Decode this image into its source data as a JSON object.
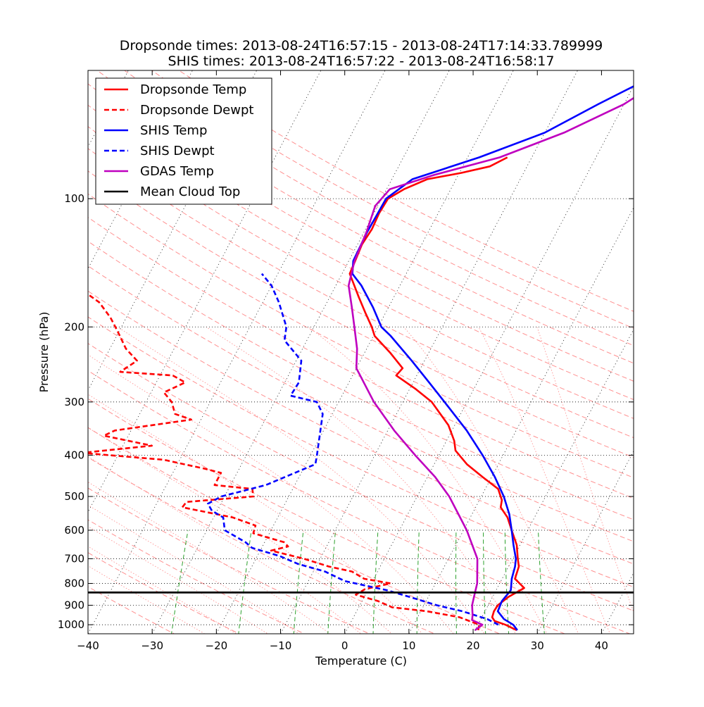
{
  "chart_data": {
    "type": "line",
    "subtype": "skew-T log-P diagram",
    "title_lines": [
      "Dropsonde times: 2013-08-24T16:57:15 - 2013-08-24T17:14:33.789999",
      "SHIS times: 2013-08-24T16:57:22 - 2013-08-24T16:58:17"
    ],
    "xlabel": "Temperature (C)",
    "ylabel": "Pressure (hPa)",
    "xlim": [
      -40,
      45
    ],
    "ylim": [
      1050,
      50
    ],
    "y_scale": "log",
    "skew": 35,
    "legend_position": "upper-left",
    "x_ticks": [
      {
        "value": -40,
        "label": "−40"
      },
      {
        "value": -30,
        "label": "−30"
      },
      {
        "value": -20,
        "label": "−20"
      },
      {
        "value": -10,
        "label": "−10"
      },
      {
        "value": 0,
        "label": "0"
      },
      {
        "value": 10,
        "label": "10"
      },
      {
        "value": 20,
        "label": "20"
      },
      {
        "value": 30,
        "label": "30"
      },
      {
        "value": 40,
        "label": "40"
      }
    ],
    "y_ticks": [
      {
        "value": 100,
        "label": "100"
      },
      {
        "value": 200,
        "label": "200"
      },
      {
        "value": 300,
        "label": "300"
      },
      {
        "value": 400,
        "label": "400"
      },
      {
        "value": 500,
        "label": "500"
      },
      {
        "value": 600,
        "label": "600"
      },
      {
        "value": 700,
        "label": "700"
      },
      {
        "value": 800,
        "label": "800"
      },
      {
        "value": 900,
        "label": "900"
      },
      {
        "value": 1000,
        "label": "1000"
      }
    ],
    "mean_cloud_top_hpa": 840,
    "series": [
      {
        "name": "Dropsonde Temp",
        "color": "#ff0000",
        "dash": "solid",
        "points": [
          [
            1030,
            26.5
          ],
          [
            1000,
            24.3
          ],
          [
            980,
            22.3
          ],
          [
            960,
            21.6
          ],
          [
            930,
            21.4
          ],
          [
            900,
            21.5
          ],
          [
            860,
            22.5
          ],
          [
            820,
            24.2
          ],
          [
            780,
            22.0
          ],
          [
            730,
            21.6
          ],
          [
            700,
            20.8
          ],
          [
            650,
            19.5
          ],
          [
            600,
            17.5
          ],
          [
            560,
            15.8
          ],
          [
            530,
            13.9
          ],
          [
            510,
            13.5
          ],
          [
            480,
            12.0
          ],
          [
            450,
            8.6
          ],
          [
            420,
            5.1
          ],
          [
            390,
            2.2
          ],
          [
            370,
            1.2
          ],
          [
            340,
            -1.0
          ],
          [
            300,
            -5.5
          ],
          [
            280,
            -9.0
          ],
          [
            260,
            -13.2
          ],
          [
            250,
            -12.8
          ],
          [
            230,
            -16.0
          ],
          [
            210,
            -19.8
          ],
          [
            200,
            -21.0
          ],
          [
            185,
            -23.2
          ],
          [
            170,
            -25.5
          ],
          [
            150,
            -28.8
          ],
          [
            140,
            -29.0
          ],
          [
            128,
            -29.3
          ],
          [
            118,
            -29.0
          ],
          [
            108,
            -29.2
          ],
          [
            100,
            -29.0
          ],
          [
            95,
            -27.3
          ],
          [
            90,
            -24.5
          ],
          [
            87,
            -19.7
          ],
          [
            84,
            -15.8
          ],
          [
            80,
            -13.8
          ]
        ]
      },
      {
        "name": "Dropsonde Dewpt",
        "color": "#ff0000",
        "dash": "dashed",
        "points": [
          [
            1030,
            20.5
          ],
          [
            1000,
            20.2
          ],
          [
            960,
            16.5
          ],
          [
            930,
            11.0
          ],
          [
            910,
            5.2
          ],
          [
            880,
            2.5
          ],
          [
            850,
            -1.5
          ],
          [
            825,
            -0.5
          ],
          [
            800,
            3.0
          ],
          [
            780,
            -1.5
          ],
          [
            750,
            -4.0
          ],
          [
            730,
            -8.0
          ],
          [
            700,
            -12.5
          ],
          [
            670,
            -18.3
          ],
          [
            655,
            -16.0
          ],
          [
            640,
            -17.0
          ],
          [
            610,
            -22.5
          ],
          [
            585,
            -22.8
          ],
          [
            560,
            -27.0
          ],
          [
            530,
            -35.7
          ],
          [
            515,
            -35.5
          ],
          [
            500,
            -25.5
          ],
          [
            480,
            -26.3
          ],
          [
            470,
            -32.5
          ],
          [
            440,
            -32.5
          ],
          [
            430,
            -35.5
          ],
          [
            410,
            -42.5
          ],
          [
            395,
            -55.8
          ],
          [
            380,
            -45.5
          ],
          [
            360,
            -53.8
          ],
          [
            350,
            -52.5
          ],
          [
            330,
            -41.5
          ],
          [
            320,
            -44.5
          ],
          [
            300,
            -46.0
          ],
          [
            285,
            -48.0
          ],
          [
            270,
            -45.5
          ],
          [
            260,
            -48.0
          ],
          [
            255,
            -56.5
          ],
          [
            240,
            -54.8
          ],
          [
            225,
            -57.5
          ],
          [
            205,
            -60.2
          ],
          [
            190,
            -62.5
          ],
          [
            175,
            -65.5
          ],
          [
            160,
            -70.5
          ],
          [
            152,
            -78.5
          ],
          [
            130,
            -79.5
          ],
          [
            125,
            -78.0
          ]
        ]
      },
      {
        "name": "SHIS Temp",
        "color": "#0000ff",
        "dash": "solid",
        "points": [
          [
            1030,
            26.6
          ],
          [
            1000,
            25.5
          ],
          [
            970,
            23.6
          ],
          [
            930,
            22.0
          ],
          [
            880,
            21.8
          ],
          [
            830,
            22.3
          ],
          [
            780,
            21.5
          ],
          [
            730,
            21.0
          ],
          [
            700,
            20.5
          ],
          [
            650,
            19.0
          ],
          [
            600,
            17.5
          ],
          [
            550,
            15.8
          ],
          [
            500,
            13.5
          ],
          [
            450,
            10.5
          ],
          [
            400,
            6.8
          ],
          [
            350,
            2.3
          ],
          [
            300,
            -3.5
          ],
          [
            270,
            -7.5
          ],
          [
            240,
            -12.0
          ],
          [
            210,
            -17.3
          ],
          [
            200,
            -19.5
          ],
          [
            180,
            -22.4
          ],
          [
            160,
            -26.0
          ],
          [
            150,
            -28.4
          ],
          [
            140,
            -29.3
          ],
          [
            120,
            -29.5
          ],
          [
            100,
            -29.3
          ],
          [
            90,
            -26.8
          ],
          [
            80,
            -18.2
          ],
          [
            70,
            -10.0
          ],
          [
            60,
            -4.0
          ],
          [
            50,
            3.6
          ]
        ]
      },
      {
        "name": "SHIS Dewpt",
        "color": "#0000ff",
        "dash": "dashed",
        "points": [
          [
            1000,
            23.2
          ],
          [
            970,
            21.0
          ],
          [
            930,
            16.5
          ],
          [
            900,
            12.0
          ],
          [
            860,
            7.0
          ],
          [
            830,
            3.0
          ],
          [
            790,
            -4.3
          ],
          [
            750,
            -8.2
          ],
          [
            720,
            -13.0
          ],
          [
            690,
            -16.5
          ],
          [
            660,
            -21.5
          ],
          [
            640,
            -23.0
          ],
          [
            600,
            -27.2
          ],
          [
            560,
            -28.5
          ],
          [
            540,
            -30.8
          ],
          [
            520,
            -32.0
          ],
          [
            500,
            -30.5
          ],
          [
            470,
            -24.5
          ],
          [
            420,
            -18.5
          ],
          [
            400,
            -19.0
          ],
          [
            350,
            -20.5
          ],
          [
            320,
            -21.5
          ],
          [
            300,
            -23.4
          ],
          [
            290,
            -28.0
          ],
          [
            270,
            -27.8
          ],
          [
            240,
            -29.2
          ],
          [
            215,
            -33.5
          ],
          [
            200,
            -34.3
          ],
          [
            175,
            -37.5
          ],
          [
            160,
            -40.0
          ],
          [
            150,
            -42.5
          ]
        ]
      },
      {
        "name": "GDAS Temp",
        "color": "#bf00bf",
        "dash": "solid",
        "points": [
          [
            1030,
            20.0
          ],
          [
            1000,
            20.7
          ],
          [
            975,
            18.7
          ],
          [
            950,
            18.4
          ],
          [
            900,
            17.5
          ],
          [
            850,
            17.0
          ],
          [
            800,
            16.5
          ],
          [
            700,
            14.5
          ],
          [
            600,
            10.5
          ],
          [
            500,
            5.0
          ],
          [
            450,
            1.2
          ],
          [
            400,
            -3.7
          ],
          [
            350,
            -9.0
          ],
          [
            300,
            -14.5
          ],
          [
            250,
            -20.0
          ],
          [
            225,
            -21.5
          ],
          [
            200,
            -23.7
          ],
          [
            180,
            -25.7
          ],
          [
            160,
            -28.0
          ],
          [
            140,
            -29.1
          ],
          [
            120,
            -29.6
          ],
          [
            104,
            -30.4
          ],
          [
            95,
            -29.5
          ],
          [
            88,
            -23.8
          ],
          [
            80,
            -15.0
          ],
          [
            70,
            -7.0
          ],
          [
            60,
            0.0
          ],
          [
            50,
            5.5
          ]
        ]
      }
    ]
  }
}
